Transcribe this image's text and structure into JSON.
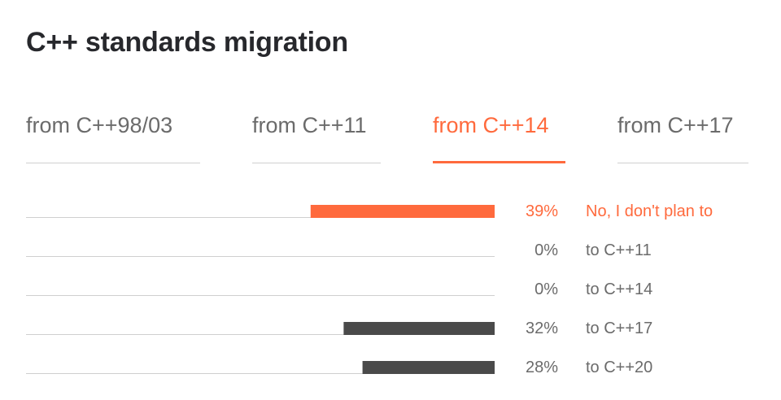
{
  "title": "C++ standards migration",
  "tabs": [
    {
      "label": "from C++98/03",
      "active": false
    },
    {
      "label": "from C++11",
      "active": false
    },
    {
      "label": "from C++14",
      "active": true
    },
    {
      "label": "from C++17",
      "active": false
    }
  ],
  "colors": {
    "accent": "#ff6a3d",
    "bar": "#4a4a4a",
    "baseline": "#cfcfcf",
    "text": "#6b6b6b"
  },
  "chart_data": {
    "type": "bar",
    "orientation": "horizontal",
    "categories": [
      "No, I don't plan to",
      "to C++11",
      "to C++14",
      "to C++17",
      "to C++20"
    ],
    "values": [
      39,
      0,
      0,
      32,
      28
    ],
    "value_labels": [
      "39%",
      "0%",
      "0%",
      "32%",
      "28%"
    ],
    "highlight_index": 0,
    "unit": "%",
    "xlim": [
      0,
      100
    ]
  }
}
